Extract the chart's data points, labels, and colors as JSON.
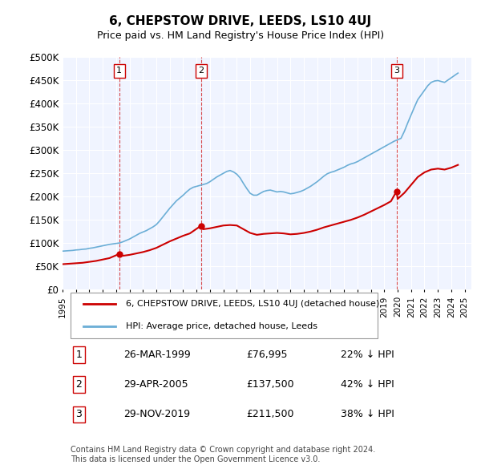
{
  "title": "6, CHEPSTOW DRIVE, LEEDS, LS10 4UJ",
  "subtitle": "Price paid vs. HM Land Registry's House Price Index (HPI)",
  "ylabel_ticks": [
    "£0",
    "£50K",
    "£100K",
    "£150K",
    "£200K",
    "£250K",
    "£300K",
    "£350K",
    "£400K",
    "£450K",
    "£500K"
  ],
  "ytick_values": [
    0,
    50000,
    100000,
    150000,
    200000,
    250000,
    300000,
    350000,
    400000,
    450000,
    500000
  ],
  "xmin": 1995.0,
  "xmax": 2025.5,
  "ymin": 0,
  "ymax": 500000,
  "hpi_color": "#6baed6",
  "price_color": "#cc0000",
  "dashed_color": "#cc0000",
  "background_color": "#f0f4ff",
  "legend_label_price": "6, CHEPSTOW DRIVE, LEEDS, LS10 4UJ (detached house)",
  "legend_label_hpi": "HPI: Average price, detached house, Leeds",
  "transactions": [
    {
      "num": 1,
      "date": "26-MAR-1999",
      "price": 76995,
      "pct": "22%",
      "dir": "↓",
      "year": 1999.23
    },
    {
      "num": 2,
      "date": "29-APR-2005",
      "price": 137500,
      "pct": "42%",
      "dir": "↓",
      "year": 2005.33
    },
    {
      "num": 3,
      "date": "29-NOV-2019",
      "price": 211500,
      "pct": "38%",
      "dir": "↓",
      "year": 2019.92
    }
  ],
  "footer": "Contains HM Land Registry data © Crown copyright and database right 2024.\nThis data is licensed under the Open Government Licence v3.0.",
  "hpi_data_x": [
    1995.0,
    1995.25,
    1995.5,
    1995.75,
    1996.0,
    1996.25,
    1996.5,
    1996.75,
    1997.0,
    1997.25,
    1997.5,
    1997.75,
    1998.0,
    1998.25,
    1998.5,
    1998.75,
    1999.0,
    1999.25,
    1999.5,
    1999.75,
    2000.0,
    2000.25,
    2000.5,
    2000.75,
    2001.0,
    2001.25,
    2001.5,
    2001.75,
    2002.0,
    2002.25,
    2002.5,
    2002.75,
    2003.0,
    2003.25,
    2003.5,
    2003.75,
    2004.0,
    2004.25,
    2004.5,
    2004.75,
    2005.0,
    2005.25,
    2005.5,
    2005.75,
    2006.0,
    2006.25,
    2006.5,
    2006.75,
    2007.0,
    2007.25,
    2007.5,
    2007.75,
    2008.0,
    2008.25,
    2008.5,
    2008.75,
    2009.0,
    2009.25,
    2009.5,
    2009.75,
    2010.0,
    2010.25,
    2010.5,
    2010.75,
    2011.0,
    2011.25,
    2011.5,
    2011.75,
    2012.0,
    2012.25,
    2012.5,
    2012.75,
    2013.0,
    2013.25,
    2013.5,
    2013.75,
    2014.0,
    2014.25,
    2014.5,
    2014.75,
    2015.0,
    2015.25,
    2015.5,
    2015.75,
    2016.0,
    2016.25,
    2016.5,
    2016.75,
    2017.0,
    2017.25,
    2017.5,
    2017.75,
    2018.0,
    2018.25,
    2018.5,
    2018.75,
    2019.0,
    2019.25,
    2019.5,
    2019.75,
    2020.0,
    2020.25,
    2020.5,
    2020.75,
    2021.0,
    2021.25,
    2021.5,
    2021.75,
    2022.0,
    2022.25,
    2022.5,
    2022.75,
    2023.0,
    2023.25,
    2023.5,
    2023.75,
    2024.0,
    2024.25,
    2024.5
  ],
  "hpi_data_y": [
    83000,
    83500,
    84000,
    84500,
    85500,
    86000,
    87000,
    87500,
    89000,
    90000,
    91500,
    93000,
    94500,
    96000,
    97500,
    98500,
    99500,
    100500,
    103000,
    106000,
    109000,
    113000,
    117000,
    121000,
    124000,
    127000,
    131000,
    135000,
    140000,
    148000,
    157000,
    166000,
    175000,
    183000,
    191000,
    197000,
    203000,
    210000,
    216000,
    220000,
    222000,
    224000,
    226000,
    228000,
    232000,
    237000,
    242000,
    246000,
    250000,
    254000,
    256000,
    253000,
    248000,
    240000,
    228000,
    217000,
    207000,
    203000,
    203000,
    207000,
    211000,
    213000,
    214000,
    212000,
    210000,
    211000,
    210000,
    208000,
    206000,
    207000,
    209000,
    211000,
    214000,
    218000,
    222000,
    227000,
    232000,
    238000,
    244000,
    249000,
    252000,
    254000,
    257000,
    260000,
    263000,
    267000,
    270000,
    272000,
    275000,
    279000,
    283000,
    287000,
    291000,
    295000,
    299000,
    303000,
    307000,
    311000,
    315000,
    319000,
    322000,
    325000,
    340000,
    358000,
    375000,
    392000,
    408000,
    418000,
    428000,
    438000,
    445000,
    448000,
    449000,
    447000,
    445000,
    450000,
    455000,
    460000,
    465000
  ],
  "price_data_x": [
    1995.0,
    1995.5,
    1996.0,
    1996.5,
    1997.0,
    1997.5,
    1998.0,
    1998.5,
    1999.23,
    1999.5,
    2000.0,
    2000.5,
    2001.0,
    2001.5,
    2002.0,
    2002.5,
    2003.0,
    2003.5,
    2004.0,
    2004.5,
    2005.33,
    2005.5,
    2006.0,
    2006.5,
    2007.0,
    2007.5,
    2008.0,
    2008.5,
    2009.0,
    2009.5,
    2010.0,
    2010.5,
    2011.0,
    2011.5,
    2012.0,
    2012.5,
    2013.0,
    2013.5,
    2014.0,
    2014.5,
    2015.0,
    2015.5,
    2016.0,
    2016.5,
    2017.0,
    2017.5,
    2018.0,
    2018.5,
    2019.0,
    2019.5,
    2019.92,
    2020.0,
    2020.5,
    2021.0,
    2021.5,
    2022.0,
    2022.5,
    2023.0,
    2023.5,
    2024.0,
    2024.5
  ],
  "price_data_y": [
    55000,
    56000,
    57000,
    58000,
    60000,
    62000,
    65000,
    68000,
    76995,
    73000,
    75000,
    78000,
    81000,
    85000,
    90000,
    97000,
    104000,
    110000,
    116000,
    121000,
    137500,
    130000,
    132000,
    135000,
    138000,
    139000,
    138000,
    130000,
    122000,
    118000,
    120000,
    121000,
    122000,
    121000,
    119000,
    120000,
    122000,
    125000,
    129000,
    134000,
    138000,
    142000,
    146000,
    150000,
    155000,
    161000,
    168000,
    175000,
    182000,
    190000,
    211500,
    195000,
    208000,
    225000,
    242000,
    252000,
    258000,
    260000,
    258000,
    262000,
    268000
  ]
}
